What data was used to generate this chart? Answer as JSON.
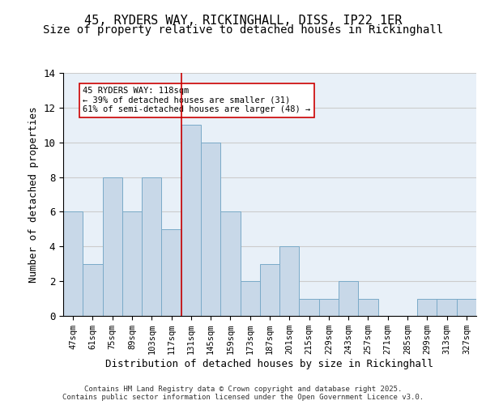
{
  "title1": "45, RYDERS WAY, RICKINGHALL, DISS, IP22 1ER",
  "title2": "Size of property relative to detached houses in Rickinghall",
  "xlabel": "Distribution of detached houses by size in Rickinghall",
  "ylabel": "Number of detached properties",
  "bin_labels": [
    "47sqm",
    "61sqm",
    "75sqm",
    "89sqm",
    "103sqm",
    "117sqm",
    "131sqm",
    "145sqm",
    "159sqm",
    "173sqm",
    "187sqm",
    "201sqm",
    "215sqm",
    "229sqm",
    "243sqm",
    "257sqm",
    "271sqm",
    "285sqm",
    "299sqm",
    "313sqm",
    "327sqm"
  ],
  "bar_values": [
    6,
    3,
    8,
    6,
    8,
    5,
    11,
    10,
    6,
    2,
    3,
    4,
    1,
    1,
    2,
    1,
    0,
    0,
    1,
    1,
    1
  ],
  "bar_color": "#c8d8e8",
  "bar_edge_color": "#7aaac8",
  "grid_color": "#cccccc",
  "bg_color": "#e8f0f8",
  "vline_x": 5.5,
  "vline_color": "#cc0000",
  "annotation_text": "45 RYDERS WAY: 118sqm\n← 39% of detached houses are smaller (31)\n61% of semi-detached houses are larger (48) →",
  "annotation_box_color": "#ffffff",
  "annotation_box_edge": "#cc0000",
  "ylim": [
    0,
    14
  ],
  "yticks": [
    0,
    2,
    4,
    6,
    8,
    10,
    12,
    14
  ],
  "footer_text": "Contains HM Land Registry data © Crown copyright and database right 2025.\nContains public sector information licensed under the Open Government Licence v3.0.",
  "title_fontsize": 11,
  "subtitle_fontsize": 10,
  "axis_fontsize": 9,
  "tick_fontsize": 7.5
}
